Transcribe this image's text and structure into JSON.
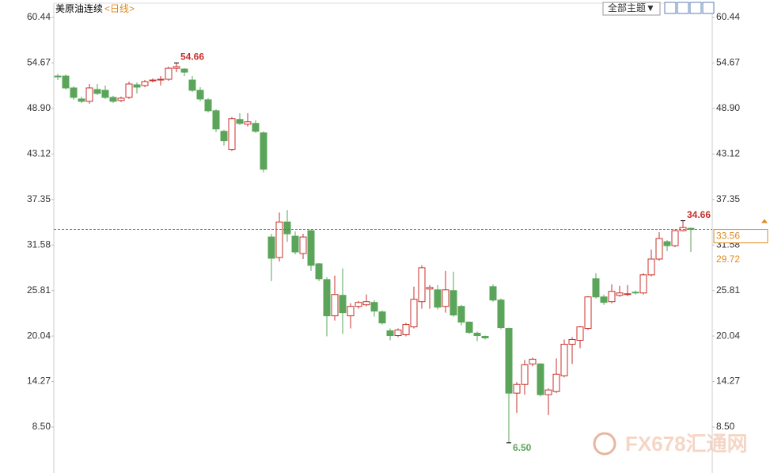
{
  "chart_data": {
    "type": "candlestick",
    "title": "美原油连续",
    "subtitle": "<日线>",
    "buttons": [
      "全部主题▼"
    ],
    "watermark": "FX678汇通网",
    "up_color": "#c8302c",
    "down_color": "#5aa55a",
    "grid": false,
    "ylim": [
      2.67,
      62.65
    ],
    "yticks": [
      60.44,
      54.67,
      {
        "value": 48.9,
        "label": "48.90"
      },
      43.12,
      37.35,
      31.58,
      25.81,
      20.04,
      14.27,
      {
        "value": 8.5,
        "label": "8.50"
      }
    ],
    "open": [
      53.0,
      53.0,
      51.5,
      50.1,
      49.8,
      51.3,
      51.2,
      50.3,
      49.9,
      50.3,
      51.9,
      51.8,
      52.4,
      52.5,
      52.6,
      54.0,
      53.9,
      52.5,
      51.2,
      50.0,
      48.6,
      46.0,
      43.7,
      47.5,
      46.9,
      47.0,
      45.8,
      32.6,
      30.0,
      34.5,
      32.7,
      30.5,
      33.4,
      29.2,
      27.2,
      22.6,
      25.2,
      22.6,
      23.8,
      24.0,
      24.3,
      23.1,
      20.7,
      20.1,
      20.2,
      21.2,
      24.4,
      26.0,
      25.9,
      23.8,
      25.8,
      23.8,
      21.8,
      20.4,
      20.0,
      26.3,
      24.6,
      21.0,
      12.8,
      13.9,
      16.5,
      16.5,
      12.6,
      13.0,
      15.0,
      19.0,
      19.5,
      21.0,
      27.3,
      25.0,
      24.4,
      25.2,
      25.3,
      25.6,
      25.5,
      27.8,
      29.8,
      32.0,
      31.5,
      33.4,
      33.7
    ],
    "high": [
      53.3,
      53.2,
      51.7,
      50.4,
      52.0,
      52.0,
      51.8,
      50.5,
      50.4,
      52.3,
      52.2,
      52.5,
      52.7,
      53.0,
      54.2,
      54.66,
      54.0,
      53.0,
      51.6,
      50.2,
      48.8,
      46.2,
      47.8,
      48.3,
      48.3,
      47.4,
      46.0,
      33.0,
      35.7,
      36.0,
      33.3,
      33.0,
      33.5,
      29.3,
      27.5,
      27.7,
      28.6,
      24.2,
      24.5,
      25.3,
      24.6,
      23.3,
      21.0,
      21.0,
      21.7,
      26.3,
      29.0,
      26.5,
      26.5,
      28.3,
      28.2,
      24.0,
      21.9,
      20.6,
      20.1,
      26.6,
      24.8,
      21.1,
      14.2,
      17.0,
      17.3,
      16.6,
      13.4,
      17.2,
      19.6,
      19.9,
      21.3,
      25.1,
      28.0,
      25.3,
      26.6,
      26.4,
      26.5,
      25.8,
      28.0,
      31.0,
      33.2,
      32.2,
      33.5,
      34.66,
      33.8
    ],
    "low": [
      52.5,
      51.3,
      50.0,
      49.6,
      49.5,
      50.6,
      50.1,
      49.6,
      49.7,
      50.1,
      50.8,
      51.6,
      52.2,
      51.8,
      52.4,
      53.5,
      53.0,
      51.0,
      49.8,
      48.4,
      45.9,
      44.2,
      43.5,
      46.8,
      46.6,
      45.8,
      40.8,
      27.0,
      29.5,
      32.0,
      30.4,
      29.8,
      28.3,
      27.0,
      20.0,
      22.0,
      20.3,
      21.0,
      23.5,
      23.8,
      22.5,
      21.5,
      19.5,
      19.9,
      20.0,
      21.0,
      23.5,
      23.5,
      23.4,
      23.0,
      22.5,
      21.4,
      20.3,
      19.4,
      19.6,
      24.4,
      20.9,
      6.5,
      10.3,
      12.6,
      16.2,
      12.4,
      10.0,
      12.8,
      14.8,
      16.5,
      18.5,
      20.8,
      24.8,
      24.0,
      24.2,
      25.0,
      25.1,
      25.3,
      25.3,
      27.6,
      29.6,
      30.8,
      31.3,
      33.3,
      30.7
    ],
    "close": [
      52.9,
      51.5,
      50.3,
      49.8,
      51.5,
      50.8,
      50.3,
      49.8,
      50.2,
      52.0,
      51.6,
      52.3,
      52.5,
      52.6,
      54.0,
      54.2,
      53.5,
      51.2,
      50.1,
      48.6,
      46.3,
      44.8,
      47.6,
      47.0,
      47.2,
      46.0,
      41.2,
      29.9,
      34.5,
      33.0,
      30.7,
      32.6,
      29.0,
      27.3,
      22.6,
      25.3,
      23.0,
      23.8,
      24.3,
      24.4,
      23.2,
      21.7,
      20.1,
      20.8,
      21.5,
      24.7,
      28.7,
      26.2,
      23.7,
      25.9,
      22.7,
      21.8,
      20.5,
      20.1,
      19.8,
      24.6,
      21.1,
      12.8,
      13.9,
      16.4,
      17.1,
      12.6,
      13.2,
      15.2,
      19.0,
      19.6,
      21.2,
      25.0,
      25.0,
      24.3,
      25.7,
      25.5,
      25.4,
      25.5,
      27.8,
      29.8,
      32.4,
      31.5,
      33.4,
      33.8,
      33.56
    ],
    "annotations": [
      54.66,
      {
        "value": 6.5,
        "label": "6.50"
      },
      34.66
    ],
    "last_price": {
      "value": 33.56,
      "label": "33.56"
    },
    "ref_price": {
      "value": 29.72,
      "label": "29.72"
    }
  }
}
